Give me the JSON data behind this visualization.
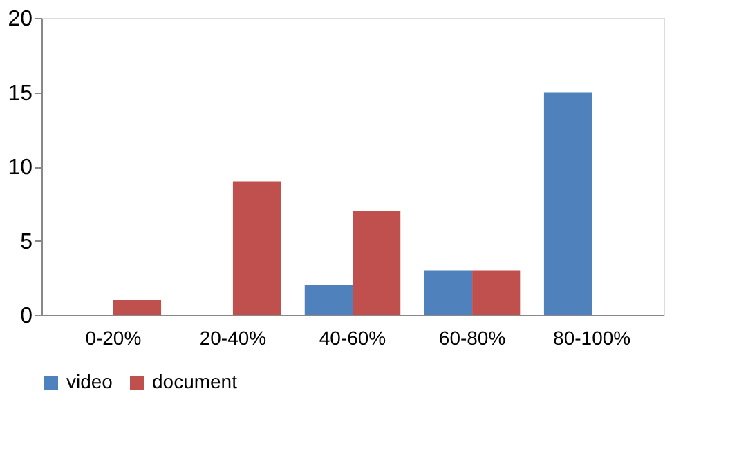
{
  "chart_data": {
    "type": "bar",
    "categories": [
      "0-20%",
      "20-40%",
      "40-60%",
      "60-80%",
      "80-100%"
    ],
    "series": [
      {
        "name": "video",
        "color": "#4f81bd",
        "values": [
          0,
          0,
          2,
          3,
          15
        ]
      },
      {
        "name": "document",
        "color": "#c0504d",
        "values": [
          1,
          9,
          7,
          3,
          0
        ]
      }
    ],
    "ylim": [
      0,
      20
    ],
    "yticks": [
      0,
      5,
      10,
      15,
      20
    ],
    "grid": false,
    "legend": "bottom"
  }
}
